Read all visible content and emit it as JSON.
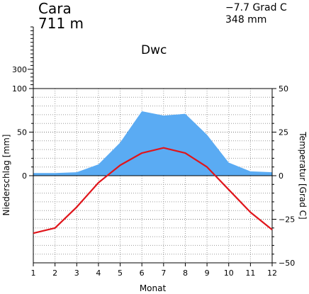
{
  "header": {
    "station": "Cara",
    "elevation": "711 m",
    "annual_temperature": "−7.7 Grad C",
    "annual_precipitation": "348 mm",
    "climate_class": "Dwc"
  },
  "chart_data": {
    "type": "line",
    "xlabel": "Monat",
    "ylabel_left": "Niederschlag [mm]",
    "ylabel_right": "Temperatur [Grad C]",
    "x": [
      1,
      2,
      3,
      4,
      5,
      6,
      7,
      8,
      9,
      10,
      11,
      12
    ],
    "x_ticks": [
      "1",
      "2",
      "3",
      "4",
      "5",
      "6",
      "7",
      "8",
      "9",
      "10",
      "11",
      "12"
    ],
    "left_ticks": [
      "0",
      "50",
      "100"
    ],
    "left_upper_tick": "300",
    "right_ticks": [
      "50",
      "25",
      "0",
      "−25",
      "−50"
    ],
    "precip_ylim": [
      0,
      100
    ],
    "temp_ylim": [
      -50,
      50
    ],
    "series": [
      {
        "type": "area",
        "axis": "left",
        "color": "#5aabf3",
        "values": [
          3,
          3,
          4,
          13,
          38,
          74,
          69,
          71,
          47,
          15,
          5,
          4
        ]
      },
      {
        "type": "line",
        "axis": "right",
        "color": "#e0151b",
        "values": [
          -33,
          -30,
          -18,
          -4,
          6,
          13,
          16,
          13,
          5,
          -8,
          -21,
          -31
        ]
      }
    ]
  }
}
